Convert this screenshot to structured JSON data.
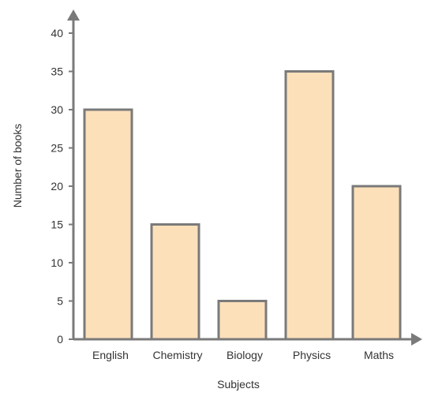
{
  "chart_data": {
    "type": "bar",
    "title": "",
    "xlabel": "Subjects",
    "ylabel": "Number of books",
    "categories": [
      "English",
      "Chemistry",
      "Biology",
      "Physics",
      "Maths"
    ],
    "values": [
      30,
      15,
      5,
      35,
      20
    ],
    "ylim": [
      0,
      40
    ],
    "yticks": [
      0,
      5,
      10,
      15,
      20,
      25,
      30,
      35,
      40
    ],
    "grid": false,
    "legend": "none",
    "colors": {
      "bar_fill": "#FCE0BA",
      "bar_stroke": "#7A7A7A",
      "axis": "#7A7A7A",
      "text": "#333333"
    }
  }
}
